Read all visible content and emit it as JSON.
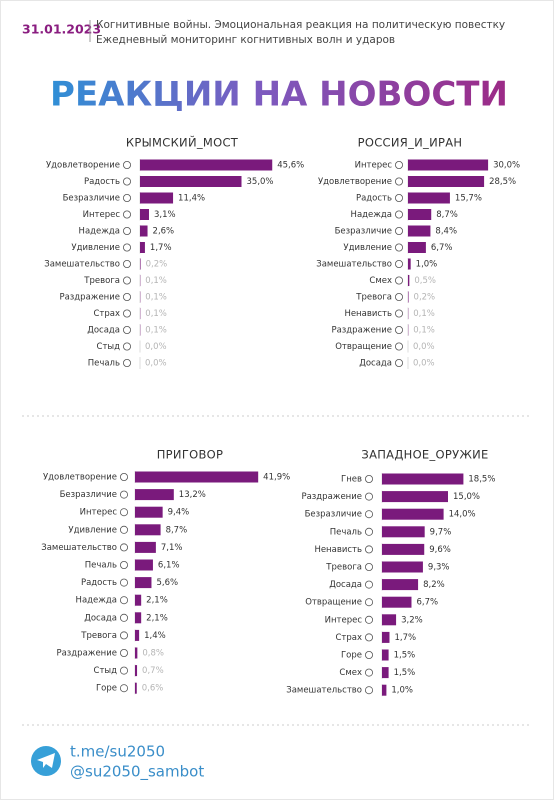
{
  "header": {
    "date": "31.01.2023",
    "line1": "Когнитивные войны. Эмоциональная реакция на политическую повестку",
    "line2": "Ежедневный мониторинг когнитивных волн и ударов"
  },
  "title": "РЕАКЦИИ НА НОВОСТИ",
  "footer": {
    "link": "t.me/su2050",
    "bot": "@su2050_sambot"
  },
  "chart_data": [
    {
      "type": "bar",
      "title": "КРЫМСКИЙ_МОСТ",
      "color": "#7a1a7c",
      "categories": [
        "Удовлетворение",
        "Радость",
        "Безразличие",
        "Интерес",
        "Надежда",
        "Удивление",
        "Замешательство",
        "Тревога",
        "Раздражение",
        "Страх",
        "Досада",
        "Стыд",
        "Печаль"
      ],
      "values": [
        45.6,
        35.0,
        11.4,
        3.1,
        2.6,
        1.7,
        0.2,
        0.1,
        0.1,
        0.1,
        0.1,
        0.0,
        0.0
      ],
      "value_labels": [
        "45,6%",
        "35,0%",
        "11,4%",
        "3,1%",
        "2,6%",
        "1,7%",
        "0,2%",
        "0,1%",
        "0,1%",
        "0,1%",
        "0,1%",
        "0,0%",
        "0,0%"
      ]
    },
    {
      "type": "bar",
      "title": "РОССИЯ_И_ИРАН",
      "color": "#7a1a7c",
      "categories": [
        "Интерес",
        "Удовлетворение",
        "Радость",
        "Надежда",
        "Безразличие",
        "Удивление",
        "Замешательство",
        "Смех",
        "Тревога",
        "Ненависть",
        "Раздражение",
        "Отвращение",
        "Досада"
      ],
      "values": [
        30.0,
        28.5,
        15.7,
        8.7,
        8.4,
        6.7,
        1.0,
        0.5,
        0.2,
        0.1,
        0.1,
        0.0,
        0.0
      ],
      "value_labels": [
        "30,0%",
        "28,5%",
        "15,7%",
        "8,7%",
        "8,4%",
        "6,7%",
        "1,0%",
        "0,5%",
        "0,2%",
        "0,1%",
        "0,1%",
        "0,0%",
        "0,0%"
      ]
    },
    {
      "type": "bar",
      "title": "ПРИГОВОР",
      "color": "#7a1a7c",
      "categories": [
        "Удовлетворение",
        "Безразличие",
        "Интерес",
        "Удивление",
        "Замешательство",
        "Печаль",
        "Радость",
        "Надежда",
        "Досада",
        "Тревога",
        "Раздражение",
        "Стыд",
        "Горе"
      ],
      "values": [
        41.9,
        13.2,
        9.4,
        8.7,
        7.1,
        6.1,
        5.6,
        2.1,
        2.1,
        1.4,
        0.8,
        0.7,
        0.6
      ],
      "value_labels": [
        "41,9%",
        "13,2%",
        "9,4%",
        "8,7%",
        "7,1%",
        "6,1%",
        "5,6%",
        "2,1%",
        "2,1%",
        "1,4%",
        "0,8%",
        "0,7%",
        "0,6%"
      ]
    },
    {
      "type": "bar",
      "title": "ЗАПАДНОЕ_ОРУЖИЕ",
      "color": "#7a1a7c",
      "categories": [
        "Гнев",
        "Раздражение",
        "Безразличие",
        "Печаль",
        "Ненависть",
        "Тревога",
        "Досада",
        "Отвращение",
        "Интерес",
        "Страх",
        "Горе",
        "Смех",
        "Замешательство"
      ],
      "values": [
        18.5,
        15.0,
        14.0,
        9.7,
        9.6,
        9.3,
        8.2,
        6.7,
        3.2,
        1.7,
        1.5,
        1.5,
        1.0
      ],
      "value_labels": [
        "18,5%",
        "15,0%",
        "14,0%",
        "9,7%",
        "9,6%",
        "9,3%",
        "8,2%",
        "6,7%",
        "3,2%",
        "1,7%",
        "1,5%",
        "1,5%",
        "1,0%"
      ]
    }
  ]
}
